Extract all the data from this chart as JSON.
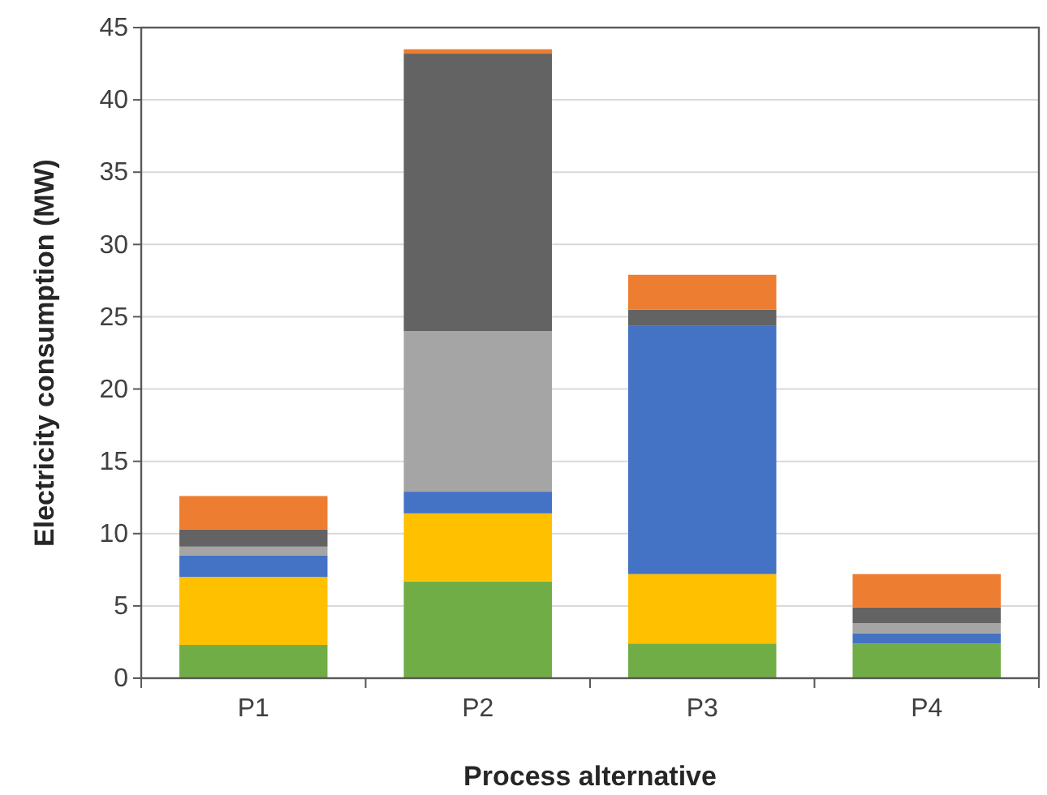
{
  "chart_data": {
    "type": "bar",
    "stacked": true,
    "xlabel": "Process alternative",
    "ylabel": "Electricity consumption (MW)",
    "categories": [
      "P1",
      "P2",
      "P3",
      "P4"
    ],
    "series": [
      {
        "color": "#70ad47",
        "values": [
          2.3,
          6.7,
          2.4,
          2.4
        ]
      },
      {
        "color": "#ffc000",
        "values": [
          4.7,
          4.7,
          4.8,
          0
        ]
      },
      {
        "color": "#4472c4",
        "values": [
          1.5,
          1.5,
          17.2,
          0.7
        ]
      },
      {
        "color": "#a5a5a5",
        "values": [
          0.6,
          11.1,
          0,
          0.7
        ]
      },
      {
        "color": "#636363",
        "values": [
          1.2,
          19.2,
          1.1,
          1.1
        ]
      },
      {
        "color": "#ed7d31",
        "values": [
          2.3,
          0.3,
          2.4,
          2.3
        ]
      }
    ],
    "ylim": [
      0,
      45
    ],
    "yticks": [
      0,
      5,
      10,
      15,
      20,
      25,
      30,
      35,
      40,
      45
    ],
    "grid": "y"
  }
}
